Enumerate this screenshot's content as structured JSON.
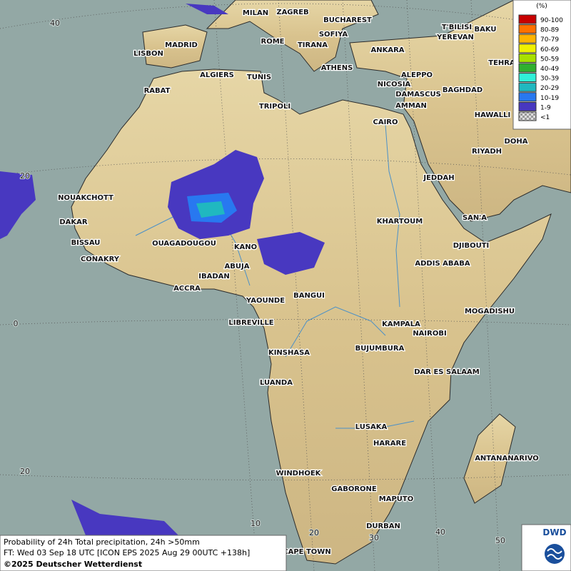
{
  "map": {
    "cities": [
      "MILAN",
      "ZAGREB",
      "BUCHAREST",
      "SOFIYA",
      "ROME",
      "TIRANA",
      "ANKARA",
      "T'BILISI",
      "BAKU",
      "YEREVAN",
      "MADRID",
      "LISBON",
      "ATHENS",
      "ALGIERS",
      "TUNIS",
      "ALEPPO",
      "NICOSIA",
      "BAGHDAD",
      "RABAT",
      "DAMASCUS",
      "AMMAN",
      "TRIPOLI",
      "CAIRO",
      "HAWALLI",
      "DOHA",
      "RIYADH",
      "JEDDAH",
      "NOUAKCHOTT",
      "DAKAR",
      "SAN'A",
      "KHARTOUM",
      "BISSAU",
      "OUAGADOUGOU",
      "DJIBOUTI",
      "KANO",
      "CONAKRY",
      "ABUJA",
      "ADDIS ABABA",
      "IBADAN",
      "ACCRA",
      "BANGUI",
      "YAOUNDE",
      "MOGADISHU",
      "LIBREVILLE",
      "KAMPALA",
      "NAIROBI",
      "BUJUMBURA",
      "KINSHASA",
      "DAR ES SALAAM",
      "LUANDA",
      "LUSAKA",
      "HARARE",
      "ANTANANARIVO",
      "WINDHOEK",
      "GABORONE",
      "MAPUTO",
      "DURBAN",
      "CAPE TOWN",
      "TEHRA"
    ],
    "latitude_labels": [
      40,
      20,
      0,
      20
    ],
    "longitude_labels": [
      10,
      20,
      30,
      40,
      50
    ],
    "legend": {
      "title": "(%)",
      "items": [
        {
          "label": "90-100",
          "color": "#c80000"
        },
        {
          "label": "80-89",
          "color": "#ff7000"
        },
        {
          "label": "70-79",
          "color": "#ffb400"
        },
        {
          "label": "60-69",
          "color": "#f0f000"
        },
        {
          "label": "50-59",
          "color": "#a8e000"
        },
        {
          "label": "40-49",
          "color": "#30b030"
        },
        {
          "label": "30-39",
          "color": "#30f0d8"
        },
        {
          "label": "20-29",
          "color": "#20b8c0"
        },
        {
          "label": "10-19",
          "color": "#2878f0"
        },
        {
          "label": "1-9",
          "color": "#4838c0"
        },
        {
          "label": "<1",
          "color": "#b0b0b0"
        }
      ]
    },
    "footer": {
      "line1": "Probability of 24h Total precipitation, 24h >50mm",
      "line2": "FT: Wed 03 Sep 18 UTC [ICON EPS 2025 Aug 29 00UTC +138h]",
      "line3": "©2025 Deutscher Wetterdienst"
    },
    "logo": "DWD"
  }
}
